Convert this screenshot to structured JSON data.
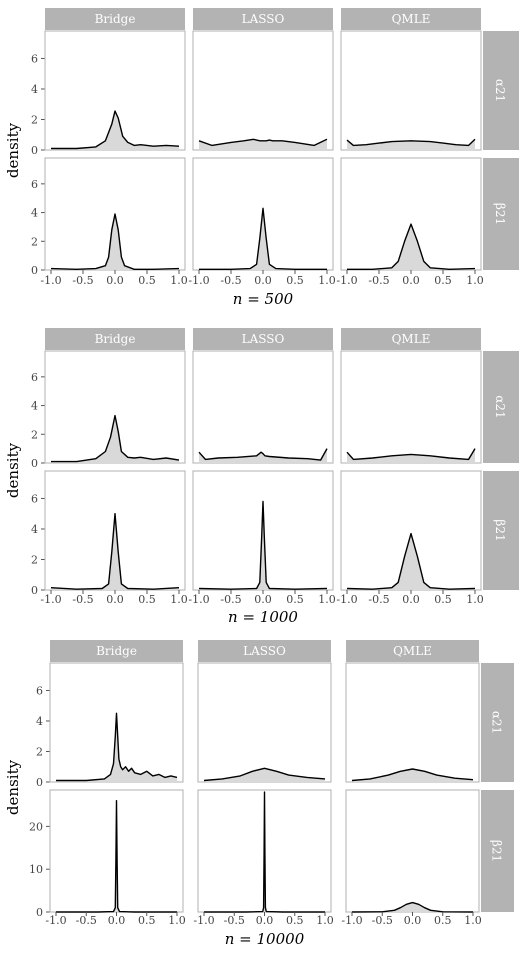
{
  "chart_data": [
    {
      "type": "area",
      "subtitle": "n = 500",
      "xlabel": "n = 500",
      "ylabel": "density",
      "xlim": [
        -1,
        1
      ],
      "xticks": [
        -1.0,
        -0.5,
        0.0,
        0.5,
        1.0
      ],
      "x_tick_labels": [
        "-1.0",
        "-0.5",
        "0.0",
        "0.5",
        "1.0"
      ],
      "facet_columns": [
        "Bridge",
        "LASSO",
        "QMLE"
      ],
      "facet_rows": [
        {
          "label": "α21",
          "ylim": [
            0,
            7.8
          ],
          "yticks": [
            0,
            2,
            4,
            6
          ],
          "y_tick_labels": [
            "0",
            "2",
            "4",
            "6"
          ]
        },
        {
          "label": "β21",
          "ylim": [
            0,
            7.8
          ],
          "yticks": [
            0,
            2,
            4,
            6
          ],
          "y_tick_labels": [
            "0",
            "2",
            "4",
            "6"
          ]
        }
      ],
      "curves": [
        [
          {
            "x": [
              -1,
              -0.6,
              -0.3,
              -0.15,
              -0.05,
              0,
              0.05,
              0.12,
              0.2,
              0.3,
              0.4,
              0.6,
              0.8,
              1
            ],
            "y": [
              0.1,
              0.1,
              0.2,
              0.6,
              1.7,
              2.55,
              2.1,
              0.9,
              0.5,
              0.3,
              0.35,
              0.25,
              0.3,
              0.25
            ]
          },
          {
            "x": [
              -1,
              -0.8,
              -0.5,
              -0.3,
              -0.15,
              -0.1,
              -0.05,
              0,
              0.05,
              0.1,
              0.15,
              0.3,
              0.5,
              0.8,
              1
            ],
            "y": [
              0.6,
              0.3,
              0.5,
              0.6,
              0.7,
              0.65,
              0.6,
              0.6,
              0.6,
              0.65,
              0.6,
              0.6,
              0.5,
              0.3,
              0.7
            ]
          },
          {
            "x": [
              -1,
              -0.9,
              -0.7,
              -0.5,
              -0.3,
              0,
              0.3,
              0.5,
              0.7,
              0.9,
              1
            ],
            "y": [
              0.65,
              0.3,
              0.35,
              0.45,
              0.55,
              0.6,
              0.55,
              0.45,
              0.35,
              0.3,
              0.7
            ]
          }
        ],
        [
          {
            "x": [
              -1,
              -0.6,
              -0.3,
              -0.15,
              -0.1,
              -0.05,
              0,
              0.05,
              0.1,
              0.15,
              0.3,
              0.6,
              1
            ],
            "y": [
              0.1,
              0.05,
              0.1,
              0.3,
              0.9,
              2.8,
              3.9,
              2.8,
              0.9,
              0.3,
              0.05,
              0.05,
              0.1
            ]
          },
          {
            "x": [
              -1,
              -0.5,
              -0.2,
              -0.1,
              -0.05,
              0,
              0.05,
              0.1,
              0.2,
              0.5,
              1
            ],
            "y": [
              0.05,
              0.05,
              0.1,
              0.4,
              2.2,
              4.3,
              2.2,
              0.4,
              0.1,
              0.05,
              0.05
            ]
          },
          {
            "x": [
              -1,
              -0.6,
              -0.3,
              -0.2,
              -0.1,
              0,
              0.1,
              0.2,
              0.3,
              0.6,
              1
            ],
            "y": [
              0.05,
              0.05,
              0.15,
              0.6,
              2.0,
              3.2,
              2.0,
              0.6,
              0.15,
              0.05,
              0.1
            ]
          }
        ]
      ]
    },
    {
      "type": "area",
      "subtitle": "n = 1000",
      "xlabel": "n = 1000",
      "ylabel": "density",
      "xlim": [
        -1,
        1
      ],
      "xticks": [
        -1.0,
        -0.5,
        0.0,
        0.5,
        1.0
      ],
      "x_tick_labels": [
        "-1.0",
        "-0.5",
        "0.0",
        "0.5",
        "1.0"
      ],
      "facet_columns": [
        "Bridge",
        "LASSO",
        "QMLE"
      ],
      "facet_rows": [
        {
          "label": "α21",
          "ylim": [
            0,
            7.8
          ],
          "yticks": [
            0,
            2,
            4,
            6
          ],
          "y_tick_labels": [
            "0",
            "2",
            "4",
            "6"
          ]
        },
        {
          "label": "β21",
          "ylim": [
            0,
            7.8
          ],
          "yticks": [
            0,
            2,
            4,
            6
          ],
          "y_tick_labels": [
            "0",
            "2",
            "4",
            "6"
          ]
        }
      ],
      "curves": [
        [
          {
            "x": [
              -1,
              -0.6,
              -0.3,
              -0.15,
              -0.07,
              0,
              0.05,
              0.1,
              0.2,
              0.3,
              0.4,
              0.6,
              0.8,
              1
            ],
            "y": [
              0.1,
              0.1,
              0.3,
              0.8,
              1.8,
              3.3,
              2.2,
              0.8,
              0.4,
              0.35,
              0.4,
              0.25,
              0.35,
              0.2
            ]
          },
          {
            "x": [
              -1,
              -0.9,
              -0.7,
              -0.4,
              -0.1,
              -0.03,
              0,
              0.03,
              0.1,
              0.4,
              0.7,
              0.9,
              1
            ],
            "y": [
              0.75,
              0.25,
              0.35,
              0.4,
              0.5,
              0.75,
              0.65,
              0.5,
              0.45,
              0.35,
              0.3,
              0.2,
              1.0
            ]
          },
          {
            "x": [
              -1,
              -0.9,
              -0.6,
              -0.3,
              0,
              0.3,
              0.6,
              0.9,
              1
            ],
            "y": [
              0.75,
              0.25,
              0.35,
              0.5,
              0.6,
              0.5,
              0.35,
              0.25,
              1.0
            ]
          }
        ],
        [
          {
            "x": [
              -1,
              -0.6,
              -0.2,
              -0.1,
              -0.05,
              0,
              0.05,
              0.1,
              0.2,
              0.6,
              1
            ],
            "y": [
              0.15,
              0.05,
              0.1,
              0.4,
              2.5,
              5.0,
              2.5,
              0.4,
              0.1,
              0.05,
              0.15
            ]
          },
          {
            "x": [
              -1,
              -0.5,
              -0.1,
              -0.05,
              -0.02,
              0,
              0.02,
              0.05,
              0.1,
              0.5,
              1
            ],
            "y": [
              0.1,
              0.05,
              0.1,
              0.5,
              3.5,
              5.8,
              3.5,
              0.5,
              0.1,
              0.05,
              0.1
            ]
          },
          {
            "x": [
              -1,
              -0.6,
              -0.3,
              -0.2,
              -0.1,
              0,
              0.1,
              0.2,
              0.3,
              0.6,
              1
            ],
            "y": [
              0.1,
              0.05,
              0.15,
              0.5,
              2.2,
              3.7,
              2.2,
              0.5,
              0.15,
              0.05,
              0.1
            ]
          }
        ]
      ]
    },
    {
      "type": "area",
      "subtitle": "n = 10000",
      "xlabel": "n = 10000",
      "ylabel": "density",
      "xlim": [
        -1,
        1
      ],
      "xticks": [
        -1.0,
        -0.5,
        0.0,
        0.5,
        1.0
      ],
      "x_tick_labels": [
        "-1.0",
        "-0.5",
        "0.0",
        "0.5",
        "1.0"
      ],
      "facet_columns": [
        "Bridge",
        "LASSO",
        "QMLE"
      ],
      "facet_rows": [
        {
          "label": "α21",
          "ylim": [
            0,
            7.8
          ],
          "yticks": [
            0,
            2,
            4,
            6
          ],
          "y_tick_labels": [
            "0",
            "2",
            "4",
            "6"
          ]
        },
        {
          "label": "β21",
          "ylim": [
            0,
            28.5
          ],
          "yticks": [
            0,
            10,
            20
          ],
          "y_tick_labels": [
            "0",
            "10",
            "20"
          ]
        }
      ],
      "curves": [
        [
          {
            "x": [
              -1,
              -0.5,
              -0.2,
              -0.1,
              -0.05,
              -0.02,
              0,
              0.02,
              0.04,
              0.07,
              0.1,
              0.15,
              0.2,
              0.25,
              0.3,
              0.4,
              0.5,
              0.6,
              0.7,
              0.8,
              0.9,
              1
            ],
            "y": [
              0.1,
              0.1,
              0.2,
              0.5,
              1.2,
              3.0,
              4.5,
              3.0,
              1.5,
              1.0,
              0.8,
              1.0,
              0.7,
              0.9,
              0.6,
              0.5,
              0.7,
              0.4,
              0.5,
              0.3,
              0.4,
              0.3
            ]
          },
          {
            "x": [
              -1,
              -0.7,
              -0.4,
              -0.2,
              0,
              0.2,
              0.4,
              0.7,
              1
            ],
            "y": [
              0.1,
              0.2,
              0.4,
              0.7,
              0.9,
              0.7,
              0.45,
              0.3,
              0.2
            ]
          },
          {
            "x": [
              -1,
              -0.7,
              -0.4,
              -0.2,
              0,
              0.2,
              0.4,
              0.7,
              1
            ],
            "y": [
              0.1,
              0.2,
              0.45,
              0.7,
              0.85,
              0.7,
              0.45,
              0.25,
              0.15
            ]
          }
        ],
        [
          {
            "x": [
              -1,
              -0.3,
              -0.05,
              -0.02,
              -0.01,
              0,
              0.01,
              0.02,
              0.05,
              0.3,
              1
            ],
            "y": [
              0,
              0,
              0.1,
              1,
              12,
              26,
              12,
              1,
              0.1,
              0,
              0
            ]
          },
          {
            "x": [
              -1,
              -0.3,
              -0.03,
              -0.015,
              -0.007,
              0,
              0.007,
              0.015,
              0.03,
              0.3,
              1
            ],
            "y": [
              0,
              0,
              0.1,
              1,
              14,
              28,
              14,
              1,
              0.1,
              0,
              0
            ]
          },
          {
            "x": [
              -1,
              -0.5,
              -0.3,
              -0.2,
              -0.1,
              0,
              0.1,
              0.2,
              0.3,
              0.5,
              1
            ],
            "y": [
              0,
              0.05,
              0.4,
              1.0,
              1.8,
              2.2,
              1.8,
              1.0,
              0.4,
              0.05,
              0
            ]
          }
        ]
      ]
    }
  ]
}
